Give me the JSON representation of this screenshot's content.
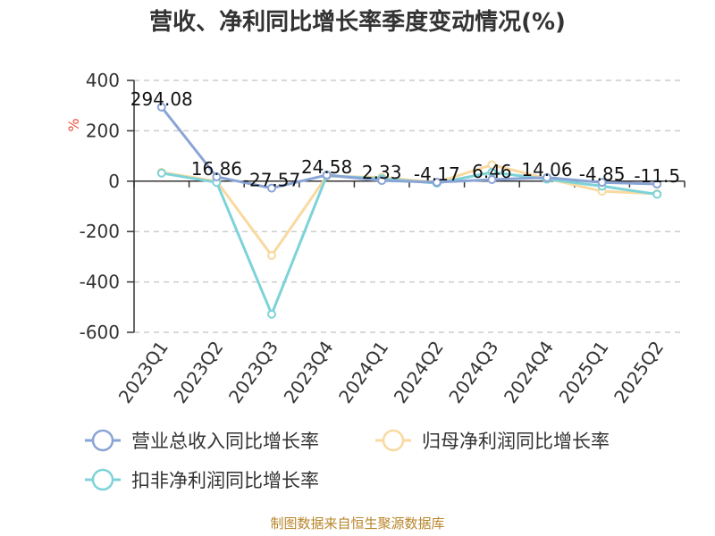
{
  "chart_data": {
    "type": "line",
    "title": "营收、净利同比增长率季度变动情况(%)",
    "unit_label": "%",
    "categories": [
      "2023Q1",
      "2023Q2",
      "2023Q3",
      "2023Q4",
      "2024Q1",
      "2024Q2",
      "2024Q3",
      "2024Q4",
      "2025Q1",
      "2025Q2"
    ],
    "ylim": [
      -600,
      400
    ],
    "yticks": [
      400,
      200,
      0,
      -200,
      -400,
      -600
    ],
    "grid": true,
    "legend_position": "bottom",
    "series": [
      {
        "name": "营业总收入同比增长率",
        "color": "#8aa4d6",
        "values": [
          294.08,
          16.86,
          -27.57,
          24.58,
          2.33,
          -4.17,
          6.46,
          14.06,
          -4.85,
          -11.5
        ],
        "labels": [
          "294.08",
          "16.86",
          "-27.57",
          "24.58",
          "2.33",
          "-4.17",
          "6.46",
          "14.06",
          "-4.85",
          "-11.5"
        ]
      },
      {
        "name": "归母净利润同比增长率",
        "color": "#f9d9a0",
        "values": [
          35,
          0,
          -295,
          20,
          15,
          -5,
          65,
          10,
          -40,
          -50
        ]
      },
      {
        "name": "扣非净利润同比增长率",
        "color": "#7dd3d8",
        "values": [
          32,
          -5,
          -528,
          22,
          10,
          -8,
          35,
          8,
          -20,
          -52
        ]
      }
    ]
  },
  "source": "制图数据来自恒生聚源数据库"
}
